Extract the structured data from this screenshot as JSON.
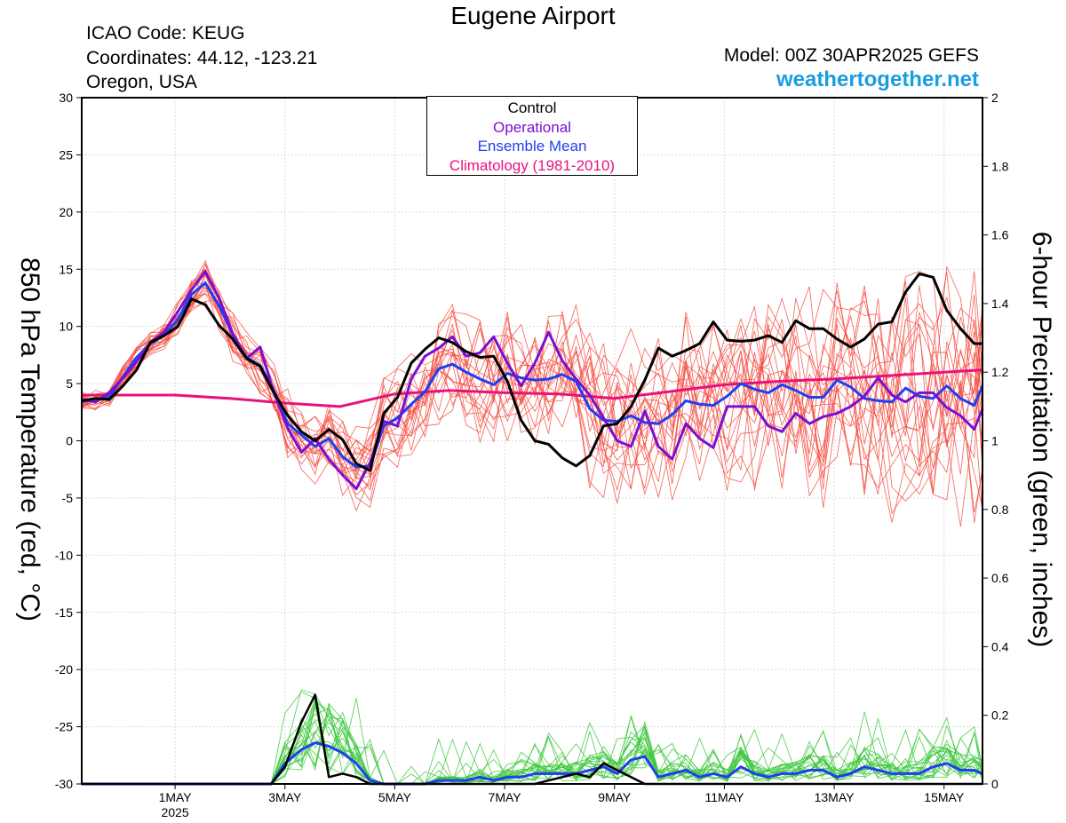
{
  "header": {
    "title": "Eugene Airport",
    "icao": "ICAO Code: KEUG",
    "coordinates": "Coordinates: 44.12, -123.21",
    "region": "Oregon, USA",
    "model": "Model: 00Z 30APR2025 GEFS",
    "site": "weathertogether.net"
  },
  "colors": {
    "control": "#000000",
    "operational": "#7b0fd1",
    "ensemble_mean": "#1f3ff0",
    "climatology": "#e8127c",
    "members_temp": "#f4483c",
    "members_precip": "#3cc83c",
    "site": "#1a9de0"
  },
  "legend": {
    "items": [
      {
        "label": "Control",
        "color": "#000000"
      },
      {
        "label": "Operational",
        "color": "#7b0fd1"
      },
      {
        "label": "Ensemble Mean",
        "color": "#1f3ff0"
      },
      {
        "label": "Climatology (1981-2010)",
        "color": "#e8127c"
      }
    ]
  },
  "chart_data": {
    "type": "line",
    "xlabel": "",
    "ylabel_left": "850 hPa Temperature (red, °C)",
    "ylabel_right": "6-hour Precipitation (green, inches)",
    "ylim_left": [
      -30,
      30
    ],
    "ylim_right": [
      0,
      2
    ],
    "left_ticks": [
      30,
      25,
      20,
      15,
      10,
      5,
      0,
      -5,
      -10,
      -15,
      -20,
      -25,
      -30
    ],
    "left_tick_labels": [
      "30",
      "25",
      "20",
      "15",
      "10",
      "5",
      "0",
      "-5",
      "-10",
      "-15",
      "-20",
      "-25",
      "-30"
    ],
    "right_ticks": [
      2,
      1.8,
      1.6,
      1.4,
      1.2,
      1,
      0.8,
      0.6,
      0.4,
      0.2,
      0
    ],
    "right_tick_labels": [
      "2",
      "1.8",
      "1.6",
      "1.4",
      "1.2",
      "1",
      "0.8",
      "0.6",
      "0.4",
      "0.2",
      "0"
    ],
    "x_range_days": [
      -0.7,
      15.7
    ],
    "x_ticks": [
      {
        "day": 1,
        "label": "1MAY",
        "sublabel": "2025"
      },
      {
        "day": 3,
        "label": "3MAY"
      },
      {
        "day": 5,
        "label": "5MAY"
      },
      {
        "day": 7,
        "label": "7MAY"
      },
      {
        "day": 9,
        "label": "9MAY"
      },
      {
        "day": 11,
        "label": "11MAY"
      },
      {
        "day": 13,
        "label": "13MAY"
      },
      {
        "day": 15,
        "label": "15MAY"
      }
    ],
    "series": [
      {
        "name": "Control",
        "axis": "left",
        "x": [
          -0.7,
          -0.45,
          -0.2,
          0.05,
          0.3,
          0.55,
          0.8,
          1.05,
          1.3,
          1.55,
          1.8,
          2.05,
          2.3,
          2.55,
          2.8,
          3.05,
          3.3,
          3.55,
          3.8,
          4.05,
          4.3,
          4.55,
          4.8,
          5.05,
          5.3,
          5.55,
          5.8,
          6.05,
          6.3,
          6.55,
          6.8,
          7.05,
          7.3,
          7.55,
          7.8,
          8.05,
          8.3,
          8.55,
          8.8,
          9.05,
          9.3,
          9.55,
          9.8,
          10.05,
          10.3,
          10.55,
          10.8,
          11.05,
          11.3,
          11.55,
          11.8,
          12.05,
          12.3,
          12.55,
          12.8,
          13.05,
          13.3,
          13.55,
          13.8,
          14.05,
          14.3,
          14.55,
          14.8,
          15.05,
          15.3,
          15.55,
          15.7
        ],
        "values": [
          3.5,
          3.7,
          3.6,
          4.8,
          6.2,
          8.6,
          9.2,
          10,
          12.4,
          11.9,
          10.1,
          8.9,
          7.2,
          6.5,
          4.2,
          2.2,
          0.8,
          0,
          1,
          0.1,
          -2,
          -2.6,
          2.4,
          3.8,
          6.8,
          8,
          9,
          8.6,
          7.8,
          7.3,
          7.4,
          5.2,
          1.8,
          0,
          -0.3,
          -1.5,
          -2.2,
          -1.3,
          1.3,
          1.5,
          3,
          5.3,
          8.1,
          7.4,
          7.9,
          8.5,
          10.4,
          8.8,
          8.7,
          8.8,
          9.2,
          8.6,
          10.5,
          9.8,
          9.8,
          8.9,
          8.2,
          8.9,
          10.2,
          10.4,
          13,
          14.6,
          14.3,
          11.4,
          9.8,
          8.5,
          8.5
        ]
      },
      {
        "name": "Operational",
        "axis": "left",
        "x": [
          -0.7,
          -0.45,
          -0.2,
          0.05,
          0.3,
          0.55,
          0.8,
          1.05,
          1.3,
          1.55,
          1.8,
          2.05,
          2.3,
          2.55,
          2.8,
          3.05,
          3.3,
          3.55,
          3.8,
          4.05,
          4.3,
          4.55,
          4.8,
          5.05,
          5.3,
          5.55,
          5.8,
          6.05,
          6.3,
          6.55,
          6.8,
          7.05,
          7.3,
          7.55,
          7.8,
          8.05,
          8.3,
          8.55,
          8.8,
          9.05,
          9.3,
          9.55,
          9.8,
          10.05,
          10.3,
          10.55,
          10.8,
          11.05,
          11.3,
          11.55,
          11.8,
          12.05,
          12.3,
          12.55,
          12.8,
          13.05,
          13.3,
          13.55,
          13.8,
          14.05,
          14.3,
          14.55,
          14.8,
          15.05,
          15.3,
          15.55,
          15.7
        ],
        "values": [
          3.6,
          3.4,
          4.2,
          5.5,
          6.9,
          8.6,
          9.5,
          11.3,
          13.2,
          14.8,
          12.5,
          9.4,
          7.2,
          8.2,
          4.2,
          1.1,
          -1,
          0.2,
          -1.6,
          -3,
          -4.2,
          -1.9,
          1.7,
          1.3,
          5.4,
          7.4,
          8.1,
          9.1,
          7.4,
          7.7,
          9.1,
          6.8,
          4.8,
          6.8,
          9.5,
          7,
          5.4,
          4,
          2,
          0,
          -0.5,
          2.6,
          -0.5,
          -1.6,
          1.5,
          0.2,
          -0.6,
          3,
          3,
          3,
          1.3,
          0.8,
          2.4,
          1.5,
          2.1,
          2.4,
          3,
          3.9,
          5.5,
          4,
          3.4,
          4.2,
          4.2,
          2.9,
          2.2,
          1,
          2.8
        ]
      },
      {
        "name": "Ensemble Mean",
        "axis": "left",
        "x": [
          -0.7,
          -0.45,
          -0.2,
          0.05,
          0.3,
          0.55,
          0.8,
          1.05,
          1.3,
          1.55,
          1.8,
          2.05,
          2.3,
          2.55,
          2.8,
          3.05,
          3.3,
          3.55,
          3.8,
          4.05,
          4.3,
          4.55,
          4.8,
          5.05,
          5.3,
          5.55,
          5.8,
          6.05,
          6.3,
          6.55,
          6.8,
          7.05,
          7.3,
          7.55,
          7.8,
          8.05,
          8.3,
          8.55,
          8.8,
          9.05,
          9.3,
          9.55,
          9.8,
          10.05,
          10.3,
          10.55,
          10.8,
          11.05,
          11.3,
          11.55,
          11.8,
          12.05,
          12.3,
          12.55,
          12.8,
          13.05,
          13.3,
          13.55,
          13.8,
          14.05,
          14.3,
          14.55,
          14.8,
          15.05,
          15.3,
          15.55,
          15.7
        ],
        "values": [
          3.4,
          3.6,
          3.8,
          5.6,
          7.3,
          8.5,
          9.2,
          10.6,
          12.8,
          13.8,
          11.8,
          9.3,
          7.3,
          6.6,
          4.4,
          1.5,
          0.5,
          -0.5,
          0.2,
          -1.4,
          -2.3,
          -2.2,
          1.3,
          2,
          3.2,
          4.3,
          6.3,
          6.7,
          6,
          5.4,
          4.9,
          5.9,
          5.5,
          5.3,
          5.4,
          5.8,
          5.2,
          2.8,
          1.8,
          1.7,
          2.2,
          1.6,
          1.5,
          2.3,
          3.5,
          3.2,
          3.1,
          3.9,
          5,
          4.5,
          4.2,
          4.9,
          4.4,
          3.8,
          3.8,
          5.3,
          4.7,
          3.7,
          3.5,
          3.4,
          4.6,
          3.9,
          3.7,
          4.8,
          3.7,
          3.1,
          4.8
        ]
      },
      {
        "name": "Climatology (1981-2010)",
        "axis": "left",
        "x": [
          -0.7,
          0,
          1,
          2,
          3,
          4,
          5,
          6,
          7,
          8,
          9,
          10,
          11,
          12,
          13,
          14,
          15,
          15.7
        ],
        "values": [
          4,
          4,
          4,
          3.7,
          3.3,
          3,
          4.1,
          4.4,
          4.2,
          4.1,
          3.7,
          4.3,
          4.9,
          5.2,
          5.4,
          5.7,
          6,
          6.2
        ]
      },
      {
        "name": "Control",
        "axis": "right",
        "x": [
          -0.7,
          0,
          1,
          2,
          2.75,
          3,
          3.3,
          3.55,
          3.8,
          4.05,
          4.3,
          4.55,
          4.8,
          5.05,
          5.3,
          5.55,
          5.8,
          6.05,
          6.3,
          6.55,
          6.8,
          7.05,
          7.3,
          7.55,
          7.8,
          8.05,
          8.3,
          8.55,
          8.8,
          9.05,
          9.3,
          9.55,
          9.8,
          10.05,
          10.3,
          10.55,
          10.8,
          11.05,
          11.3,
          11.55,
          11.8,
          12.05,
          12.3,
          12.55,
          12.8,
          13.05,
          13.3,
          13.55,
          13.8,
          14.05,
          14.3,
          14.55,
          14.8,
          15.05,
          15.3,
          15.55,
          15.7
        ],
        "values": [
          0,
          0,
          0,
          0,
          0,
          0.05,
          0.18,
          0.26,
          0.02,
          0.03,
          0.02,
          0,
          0,
          0,
          0,
          0,
          0,
          0,
          0,
          0,
          0,
          0,
          0,
          0,
          0.01,
          0.02,
          0.03,
          0.02,
          0.06,
          0.04,
          0.02,
          0,
          0,
          0,
          0,
          0,
          0,
          0,
          0,
          0,
          0,
          0,
          0,
          0,
          0,
          0,
          0,
          0,
          0,
          0,
          0,
          0,
          0,
          0,
          0,
          0,
          0
        ]
      },
      {
        "name": "Ensemble Mean",
        "axis": "right",
        "x": [
          -0.7,
          0,
          1,
          2,
          2.75,
          3,
          3.3,
          3.55,
          3.8,
          4.05,
          4.3,
          4.55,
          4.8,
          5.05,
          5.3,
          5.55,
          5.8,
          6.05,
          6.3,
          6.55,
          6.8,
          7.05,
          7.3,
          7.55,
          7.8,
          8.05,
          8.3,
          8.55,
          8.8,
          9.05,
          9.3,
          9.55,
          9.8,
          10.05,
          10.3,
          10.55,
          10.8,
          11.05,
          11.3,
          11.55,
          11.8,
          12.05,
          12.3,
          12.55,
          12.8,
          13.05,
          13.3,
          13.55,
          13.8,
          14.05,
          14.3,
          14.55,
          14.8,
          15.05,
          15.3,
          15.55,
          15.7
        ],
        "values": [
          0,
          0,
          0,
          0,
          0,
          0.06,
          0.1,
          0.12,
          0.11,
          0.09,
          0.06,
          0.01,
          0,
          0,
          0,
          0,
          0.01,
          0.01,
          0.01,
          0.02,
          0.01,
          0.02,
          0.02,
          0.03,
          0.03,
          0.03,
          0.03,
          0.04,
          0.05,
          0.03,
          0.07,
          0.08,
          0.02,
          0.03,
          0.04,
          0.02,
          0.03,
          0.02,
          0.05,
          0.03,
          0.02,
          0.03,
          0.03,
          0.04,
          0.04,
          0.02,
          0.03,
          0.05,
          0.04,
          0.03,
          0.03,
          0.03,
          0.05,
          0.06,
          0.04,
          0.04,
          0.03
        ]
      }
    ]
  }
}
